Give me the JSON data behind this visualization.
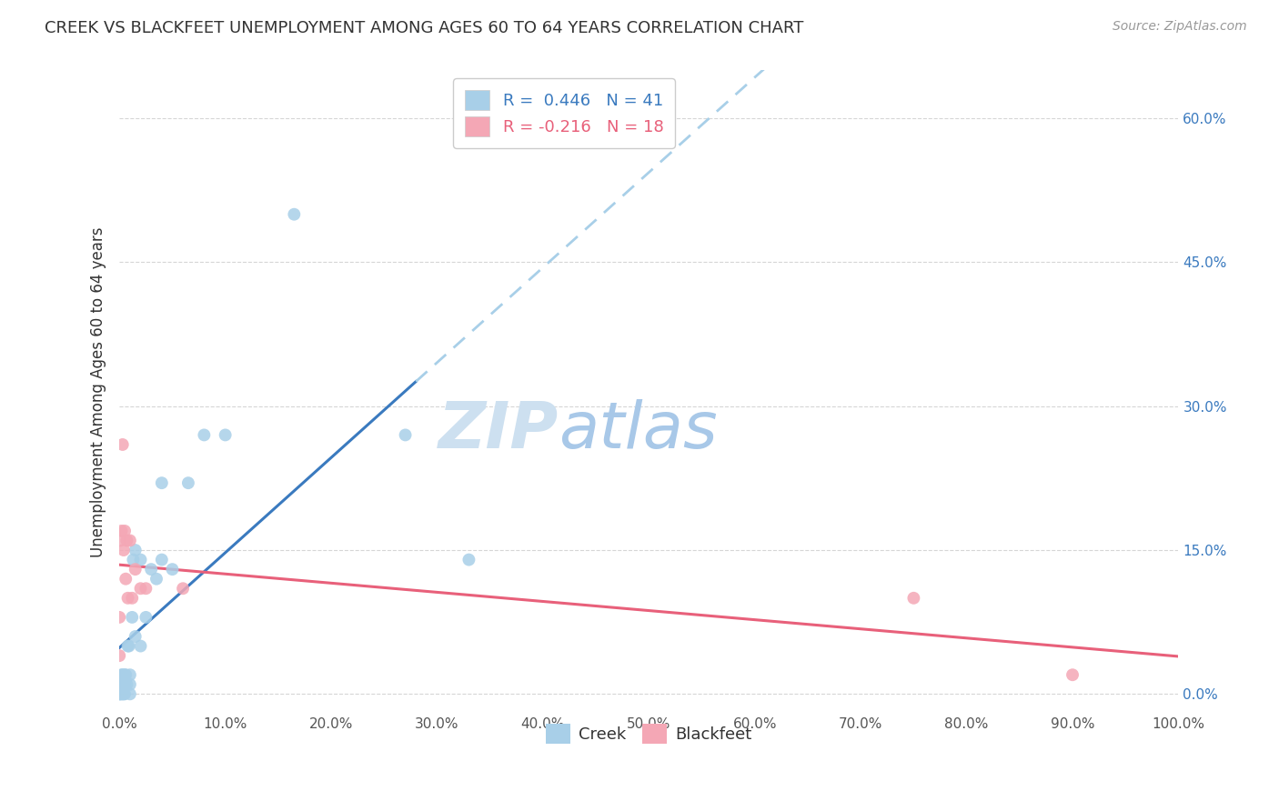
{
  "title": "CREEK VS BLACKFEET UNEMPLOYMENT AMONG AGES 60 TO 64 YEARS CORRELATION CHART",
  "source": "Source: ZipAtlas.com",
  "ylabel": "Unemployment Among Ages 60 to 64 years",
  "xlim": [
    0,
    1.0
  ],
  "ylim": [
    -0.02,
    0.65
  ],
  "xticks": [
    0.0,
    0.1,
    0.2,
    0.3,
    0.4,
    0.5,
    0.6,
    0.7,
    0.8,
    0.9,
    1.0
  ],
  "xtick_labels": [
    "0.0%",
    "10.0%",
    "20.0%",
    "30.0%",
    "40.0%",
    "50.0%",
    "60.0%",
    "70.0%",
    "80.0%",
    "90.0%",
    "100.0%"
  ],
  "yticks": [
    0.0,
    0.15,
    0.3,
    0.45,
    0.6
  ],
  "ytick_labels": [
    "0.0%",
    "15.0%",
    "30.0%",
    "45.0%",
    "60.0%"
  ],
  "creek_R": 0.446,
  "creek_N": 41,
  "blackfeet_R": -0.216,
  "blackfeet_N": 18,
  "creek_color": "#a8cfe8",
  "creek_line_color": "#3a7abf",
  "creek_line_dash_color": "#a8cfe8",
  "blackfeet_color": "#f4a7b5",
  "blackfeet_line_color": "#e8607a",
  "legend_label_creek": "Creek",
  "legend_label_blackfeet": "Blackfeet",
  "watermark_zip": "ZIP",
  "watermark_atlas": "atlas",
  "background_color": "#ffffff",
  "grid_color": "#cccccc",
  "creek_x": [
    0.0,
    0.0,
    0.0,
    0.001,
    0.001,
    0.002,
    0.002,
    0.002,
    0.003,
    0.003,
    0.003,
    0.004,
    0.004,
    0.005,
    0.005,
    0.005,
    0.006,
    0.007,
    0.008,
    0.009,
    0.01,
    0.01,
    0.01,
    0.012,
    0.013,
    0.015,
    0.015,
    0.02,
    0.02,
    0.025,
    0.03,
    0.035,
    0.04,
    0.04,
    0.05,
    0.065,
    0.08,
    0.1,
    0.165,
    0.27,
    0.33
  ],
  "creek_y": [
    0.0,
    0.0,
    0.01,
    0.0,
    0.01,
    0.0,
    0.01,
    0.02,
    0.0,
    0.01,
    0.02,
    0.0,
    0.01,
    0.0,
    0.01,
    0.02,
    0.02,
    0.01,
    0.05,
    0.05,
    0.0,
    0.01,
    0.02,
    0.08,
    0.14,
    0.06,
    0.15,
    0.05,
    0.14,
    0.08,
    0.13,
    0.12,
    0.14,
    0.22,
    0.13,
    0.22,
    0.27,
    0.27,
    0.5,
    0.27,
    0.14
  ],
  "blackfeet_x": [
    0.0,
    0.0,
    0.001,
    0.002,
    0.003,
    0.004,
    0.005,
    0.006,
    0.007,
    0.008,
    0.01,
    0.012,
    0.015,
    0.02,
    0.025,
    0.06,
    0.75,
    0.9
  ],
  "blackfeet_y": [
    0.04,
    0.08,
    0.16,
    0.17,
    0.26,
    0.15,
    0.17,
    0.12,
    0.16,
    0.1,
    0.16,
    0.1,
    0.13,
    0.11,
    0.11,
    0.11,
    0.1,
    0.02
  ],
  "creek_line_solid_end": 0.28,
  "title_fontsize": 13,
  "source_fontsize": 10,
  "ylabel_fontsize": 12,
  "tick_fontsize": 11,
  "legend_fontsize": 13
}
